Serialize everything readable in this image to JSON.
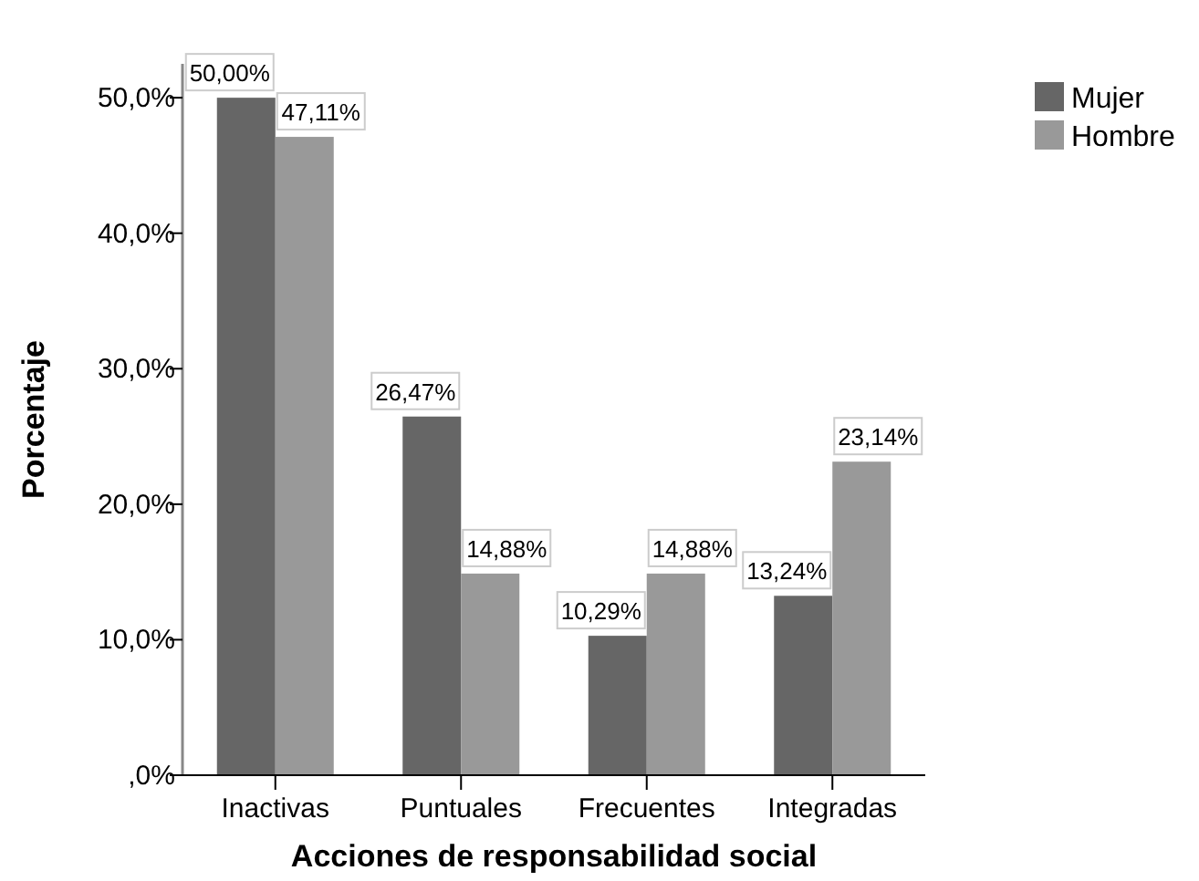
{
  "chart_data": {
    "type": "bar",
    "xlabel": "Acciones de responsabilidad social",
    "ylabel": "Porcentaje",
    "categories": [
      "Inactivas",
      "Puntuales",
      "Frecuentes",
      "Integradas"
    ],
    "series": [
      {
        "name": "Mujer",
        "color": "#666666",
        "values": [
          50.0,
          26.47,
          10.29,
          13.24
        ],
        "value_labels": [
          "50,00%",
          "26,47%",
          "10,29%",
          "13,24%"
        ]
      },
      {
        "name": "Hombre",
        "color": "#999999",
        "values": [
          47.11,
          14.88,
          14.88,
          23.14
        ],
        "value_labels": [
          "47,11%",
          "14,88%",
          "14,88%",
          "23,14%"
        ]
      }
    ],
    "ylim": [
      0,
      52.5
    ],
    "yticks": [
      {
        "value": 0,
        "label": ",0%"
      },
      {
        "value": 10,
        "label": "10,0%"
      },
      {
        "value": 20,
        "label": "20,0%"
      },
      {
        "value": 30,
        "label": "30,0%"
      },
      {
        "value": 40,
        "label": "40,0%"
      },
      {
        "value": 50,
        "label": "50,0%"
      }
    ],
    "legend": "top right"
  }
}
